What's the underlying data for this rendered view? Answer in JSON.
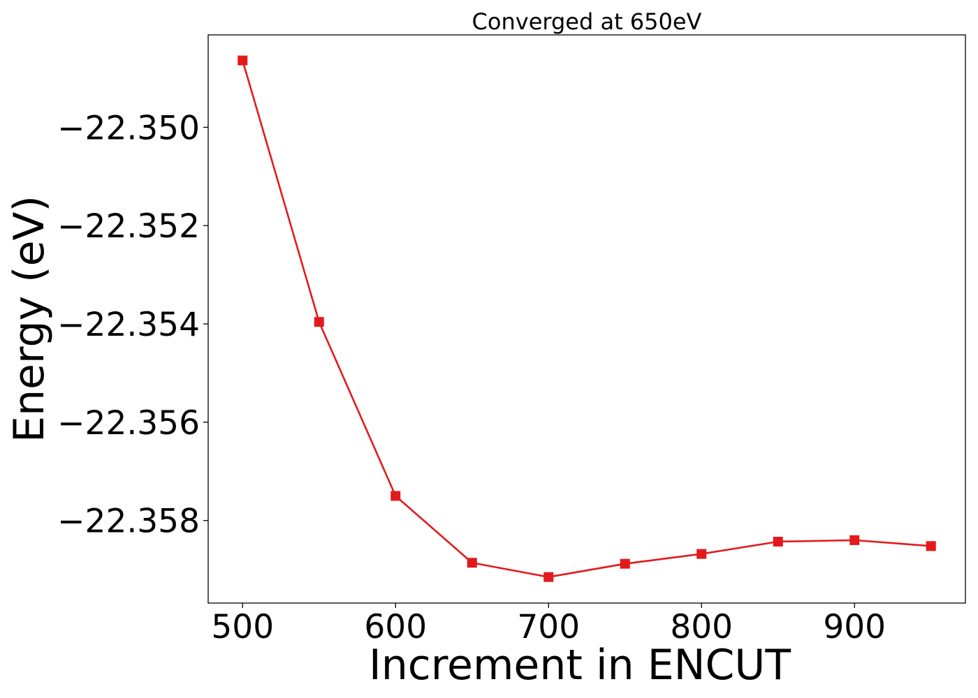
{
  "chart_data": {
    "type": "line",
    "title": "Converged at 650eV",
    "xlabel": "Increment in ENCUT",
    "ylabel": "Energy (eV)",
    "x": [
      500,
      550,
      600,
      650,
      700,
      750,
      800,
      850,
      900,
      950
    ],
    "series": [
      {
        "values": [
          -22.34864,
          -22.35396,
          -22.3575,
          -22.35886,
          -22.35915,
          -22.35888,
          -22.35868,
          -22.35843,
          -22.3584,
          -22.35852
        ],
        "color": "#e31a1c",
        "marker": "square"
      }
    ],
    "xticks": [
      500,
      600,
      700,
      800,
      900
    ],
    "xtick_labels": [
      "500",
      "600",
      "700",
      "800",
      "900"
    ],
    "yticks": [
      -22.35,
      -22.352,
      -22.354,
      -22.356,
      -22.358
    ],
    "ytick_labels": [
      "−22.350",
      "−22.352",
      "−22.354",
      "−22.356",
      "−22.358"
    ],
    "xlim": [
      477.5,
      972.5
    ],
    "ylim": [
      -22.35968,
      -22.34812
    ],
    "grid": false,
    "legend": "none"
  }
}
